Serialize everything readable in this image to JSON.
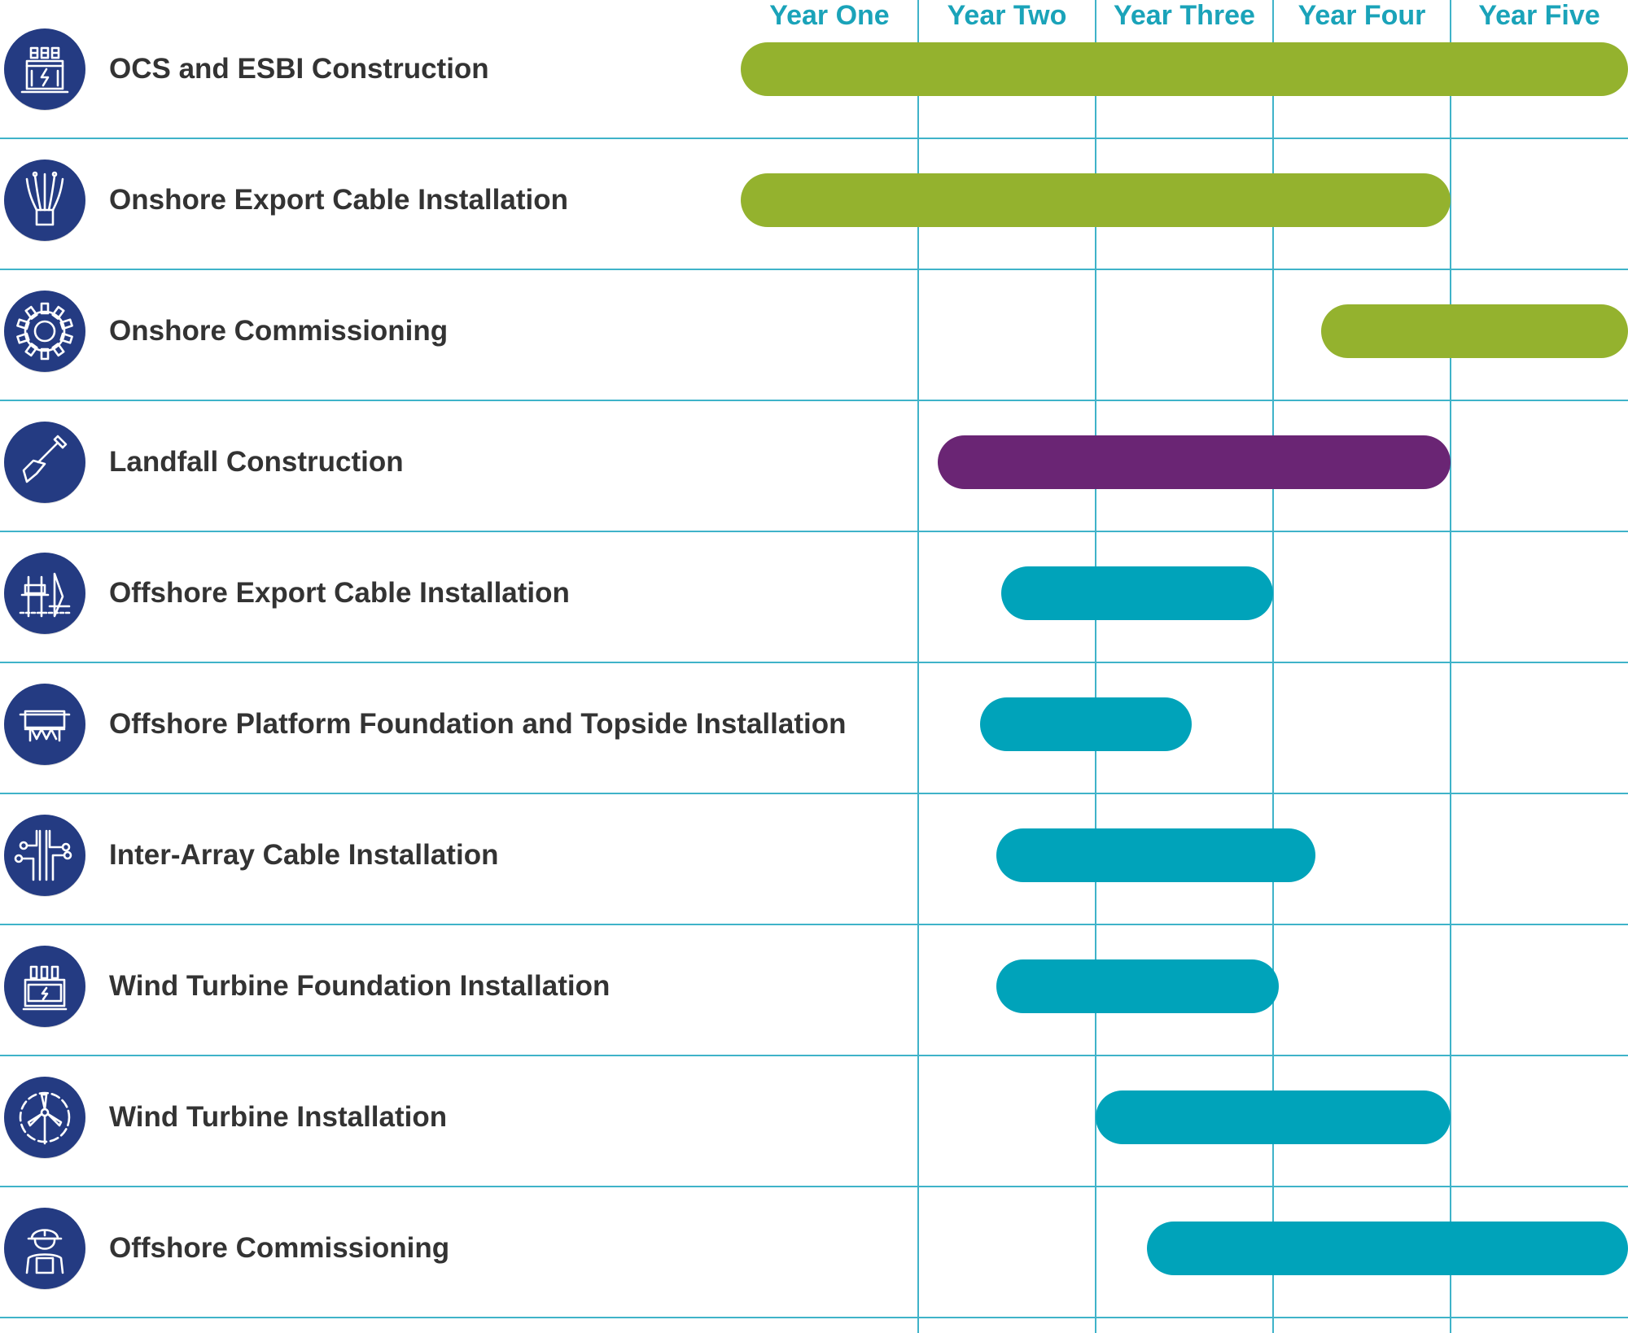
{
  "chart_data": {
    "type": "gantt",
    "x_categories": [
      "Year One",
      "Year Two",
      "Year Three",
      "Year Four",
      "Year Five"
    ],
    "xlim": [
      0,
      5
    ],
    "tasks": [
      {
        "name": "OCS and ESBI Construction",
        "start": 0.0,
        "end": 5.0,
        "color": "#94b22e",
        "icon": "substation-icon"
      },
      {
        "name": "Onshore Export Cable Installation",
        "start": 0.0,
        "end": 4.0,
        "color": "#94b22e",
        "icon": "cable-bundle-icon"
      },
      {
        "name": "Onshore Commissioning",
        "start": 3.27,
        "end": 5.0,
        "color": "#94b22e",
        "icon": "gear-icon"
      },
      {
        "name": "Landfall Construction",
        "start": 1.11,
        "end": 4.0,
        "color": "#6a2574",
        "icon": "shovel-icon"
      },
      {
        "name": "Offshore Export Cable Installation",
        "start": 1.47,
        "end": 3.0,
        "color": "#00a3ba",
        "icon": "offshore-rig-icon"
      },
      {
        "name": "Offshore Platform Foundation and Topside Installation",
        "start": 1.35,
        "end": 2.54,
        "color": "#00a3ba",
        "icon": "platform-icon"
      },
      {
        "name": "Inter-Array Cable Installation",
        "start": 1.44,
        "end": 3.24,
        "color": "#00a3ba",
        "icon": "circuit-icon"
      },
      {
        "name": "Wind Turbine Foundation Installation",
        "start": 1.44,
        "end": 3.03,
        "color": "#00a3ba",
        "icon": "transformer-icon"
      },
      {
        "name": "Wind Turbine Installation",
        "start": 2.0,
        "end": 4.0,
        "color": "#00a3ba",
        "icon": "wind-turbine-icon"
      },
      {
        "name": "Offshore Commissioning",
        "start": 2.29,
        "end": 5.0,
        "color": "#00a3ba",
        "icon": "worker-icon"
      }
    ]
  },
  "colors": {
    "grid": "#3fb3c9",
    "year_label": "#1aa3b9",
    "icon_bg": "#243b82",
    "label_text": "#333333"
  }
}
